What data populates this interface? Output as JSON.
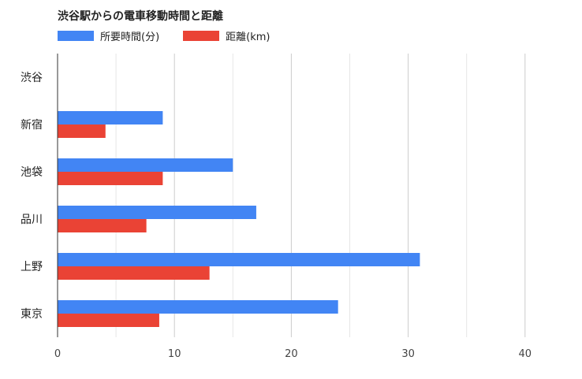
{
  "chart_data": {
    "type": "bar",
    "orientation": "horizontal",
    "title": "渋谷駅からの電車移動時間と距離",
    "categories": [
      "渋谷",
      "新宿",
      "池袋",
      "品川",
      "上野",
      "東京"
    ],
    "series": [
      {
        "name": "所要時間(分)",
        "color": "#4285f4",
        "values": [
          0,
          9,
          15,
          17,
          31,
          24
        ]
      },
      {
        "name": "距離(km)",
        "color": "#ea4335",
        "values": [
          0,
          4.1,
          9,
          7.6,
          13,
          8.7
        ]
      }
    ],
    "xlim": [
      0,
      45
    ],
    "xticks": [
      0,
      10,
      20,
      30,
      40
    ],
    "grid": true,
    "legend": "top-left"
  }
}
